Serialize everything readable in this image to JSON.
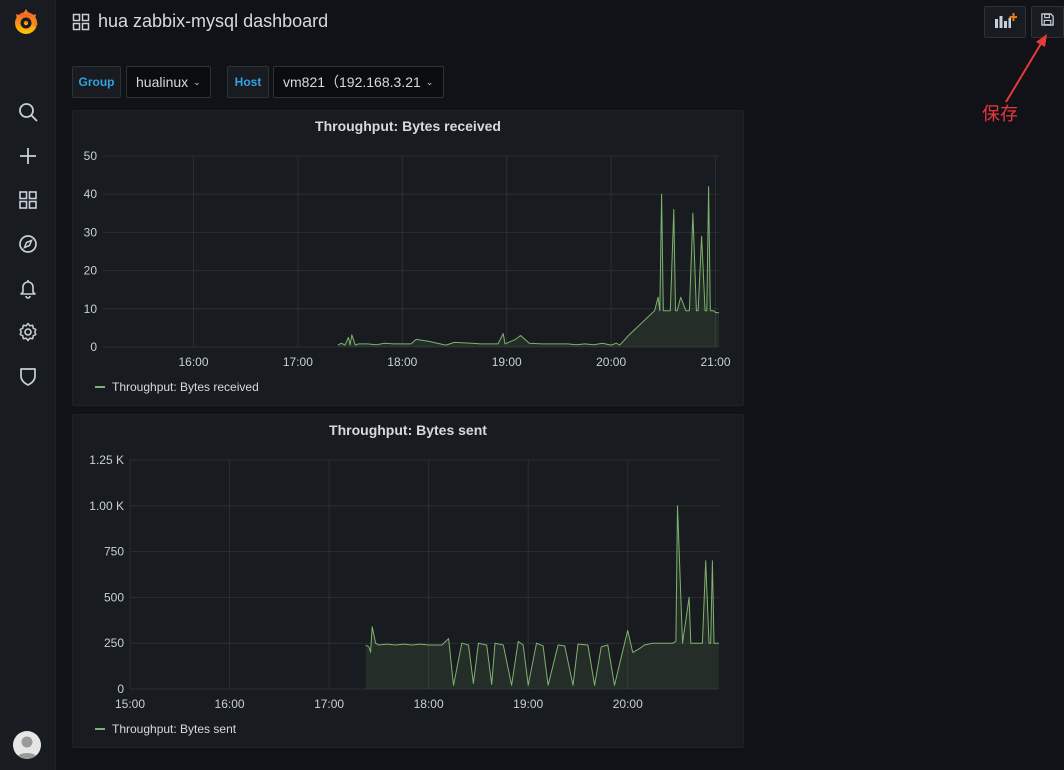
{
  "header": {
    "title": "hua zabbix-mysql dashboard"
  },
  "toolbar": {
    "add_panel_icon": "add-panel-icon",
    "save_icon": "save-icon"
  },
  "annotation": {
    "text": "保存",
    "color": "#e83a3a"
  },
  "sidebar": {
    "items": [
      {
        "name": "search",
        "icon": "search-icon"
      },
      {
        "name": "create",
        "icon": "plus-icon"
      },
      {
        "name": "dashboards",
        "icon": "dashboards-grid-icon"
      },
      {
        "name": "explore",
        "icon": "compass-icon"
      },
      {
        "name": "alerting",
        "icon": "bell-icon"
      },
      {
        "name": "configuration",
        "icon": "gear-icon"
      },
      {
        "name": "server-admin",
        "icon": "shield-icon"
      }
    ]
  },
  "variables": [
    {
      "label": "Group",
      "value": "hualinux"
    },
    {
      "label": "Host",
      "value": "vm821（192.168.3.21"
    }
  ],
  "colors": {
    "series": "#7eb26d",
    "accent": "#33a2e5",
    "background": "#111217",
    "panel": "#181b1f"
  },
  "chart_data": [
    {
      "type": "area",
      "title": "Throughput: Bytes received",
      "xlabel": "",
      "ylabel": "",
      "x_ticks": [
        "16:00",
        "17:00",
        "18:00",
        "19:00",
        "20:00",
        "21:00"
      ],
      "y_ticks": [
        "0",
        "10",
        "20",
        "30",
        "40",
        "50"
      ],
      "x_range": [
        "15:08",
        "21:02"
      ],
      "ylim": [
        0,
        50
      ],
      "grid": true,
      "legend": "bottom-left",
      "series": [
        {
          "name": "Throughput: Bytes received",
          "color": "#7eb26d",
          "x": [
            "17:23",
            "17:25",
            "17:27",
            "17:29",
            "17:30",
            "17:31",
            "17:33",
            "17:35",
            "17:40",
            "17:45",
            "17:50",
            "17:55",
            "18:00",
            "18:05",
            "18:08",
            "18:15",
            "18:25",
            "18:30",
            "18:40",
            "18:45",
            "18:50",
            "18:55",
            "18:58",
            "18:59",
            "19:00",
            "19:05",
            "19:08",
            "19:13",
            "19:20",
            "19:35",
            "19:40",
            "19:45",
            "19:50",
            "19:55",
            "20:00",
            "20:03",
            "20:05",
            "20:10",
            "20:25",
            "20:27",
            "20:28",
            "20:29",
            "20:30",
            "20:32",
            "20:34",
            "20:36",
            "20:37",
            "20:38",
            "20:40",
            "20:43",
            "20:44",
            "20:45",
            "20:47",
            "20:49",
            "20:50",
            "20:52",
            "20:54",
            "20:55",
            "20:56",
            "20:57",
            "20:58",
            "20:59",
            "21:00",
            "21:02"
          ],
          "values": [
            0.5,
            1,
            0.5,
            2.5,
            0.5,
            3.2,
            0.5,
            0.8,
            0.8,
            0.6,
            1,
            0.8,
            0.8,
            0.8,
            2,
            1.5,
            0.5,
            1.2,
            1,
            0.8,
            0.8,
            0.8,
            3.5,
            0.8,
            1,
            2,
            3,
            1,
            0.8,
            0.8,
            0.6,
            0.8,
            0.6,
            1,
            0.5,
            1,
            0.5,
            3,
            9.5,
            13,
            9.5,
            40,
            9.5,
            9.5,
            9.5,
            36,
            9.5,
            9.5,
            13,
            9.5,
            9.5,
            9.5,
            35,
            9.5,
            9.5,
            29,
            9.5,
            9.5,
            42,
            9.5,
            9.5,
            9.5,
            9,
            9
          ]
        }
      ]
    },
    {
      "type": "area",
      "title": "Throughput: Bytes sent",
      "xlabel": "",
      "ylabel": "",
      "x_ticks": [
        "15:00",
        "16:00",
        "17:00",
        "18:00",
        "19:00",
        "20:00"
      ],
      "y_ticks": [
        "0",
        "250",
        "500",
        "750",
        "1.00 K",
        "1.25 K"
      ],
      "x_range": [
        "15:00",
        "20:55"
      ],
      "ylim": [
        0,
        1250
      ],
      "grid": true,
      "legend": "bottom-left",
      "series": [
        {
          "name": "Throughput: Bytes sent",
          "color": "#7eb26d",
          "x": [
            "17:22",
            "17:24",
            "17:25",
            "17:26",
            "17:28",
            "17:30",
            "17:35",
            "17:40",
            "17:45",
            "17:50",
            "17:55",
            "18:00",
            "18:05",
            "18:08",
            "18:12",
            "18:15",
            "18:20",
            "18:24",
            "18:27",
            "18:30",
            "18:35",
            "18:38",
            "18:40",
            "18:45",
            "18:50",
            "18:54",
            "18:57",
            "19:00",
            "19:05",
            "19:09",
            "19:12",
            "19:18",
            "19:22",
            "19:27",
            "19:30",
            "19:36",
            "19:40",
            "19:44",
            "19:48",
            "19:52",
            "20:00",
            "20:03",
            "20:07",
            "20:10",
            "20:15",
            "20:20",
            "20:25",
            "20:27",
            "20:29",
            "20:30",
            "20:33",
            "20:37",
            "20:38",
            "20:40",
            "20:45",
            "20:47",
            "20:49",
            "20:50",
            "20:51",
            "20:52",
            "20:53",
            "20:54",
            "20:55"
          ],
          "values": [
            240,
            230,
            200,
            340,
            250,
            240,
            245,
            240,
            245,
            240,
            245,
            240,
            240,
            240,
            275,
            20,
            250,
            240,
            30,
            250,
            240,
            25,
            250,
            240,
            20,
            260,
            240,
            20,
            250,
            235,
            20,
            240,
            235,
            20,
            245,
            240,
            20,
            230,
            240,
            20,
            320,
            200,
            220,
            240,
            250,
            250,
            250,
            250,
            260,
            1000,
            250,
            500,
            250,
            250,
            250,
            700,
            250,
            250,
            700,
            250,
            250,
            250,
            250
          ]
        }
      ]
    }
  ]
}
